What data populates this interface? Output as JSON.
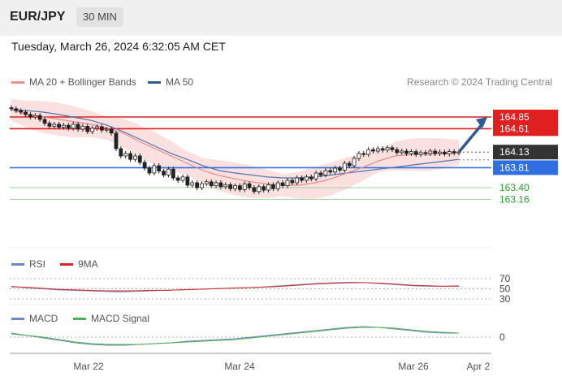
{
  "header": {
    "symbol": "EUR/JPY",
    "timeframe": "30 MIN"
  },
  "date": "Tuesday, March 26, 2024 6:32:05 AM CET",
  "legend_main": [
    {
      "label": "MA 20 + Bollinger Bands",
      "color": "#e89090"
    },
    {
      "label": "MA 50",
      "color": "#2f5a96"
    }
  ],
  "credit": "Research © 2024 Trading Central",
  "legend_rsi": [
    {
      "label": "RSI",
      "color": "#6f86c9"
    },
    {
      "label": "9MA",
      "color": "#d62728"
    }
  ],
  "legend_macd": [
    {
      "label": "MACD",
      "color": "#6f86c9"
    },
    {
      "label": "MACD Signal",
      "color": "#4caf50"
    }
  ],
  "chart_data": {
    "type": "candlestick",
    "x_ticks": [
      "Mar 22",
      "Mar 24",
      "Mar 26",
      "Apr 2"
    ],
    "y_range": [
      162.75,
      165.25
    ],
    "close_series": [
      165.02,
      164.98,
      164.95,
      164.9,
      164.85,
      164.88,
      164.8,
      164.72,
      164.66,
      164.7,
      164.64,
      164.68,
      164.62,
      164.7,
      164.6,
      164.66,
      164.55,
      164.62,
      164.65,
      164.58,
      164.6,
      164.52,
      164.2,
      164.05,
      164.1,
      163.98,
      164.05,
      163.92,
      163.8,
      163.7,
      163.85,
      163.74,
      163.66,
      163.78,
      163.6,
      163.55,
      163.62,
      163.45,
      163.5,
      163.4,
      163.48,
      163.52,
      163.44,
      163.5,
      163.42,
      163.46,
      163.38,
      163.44,
      163.36,
      163.48,
      163.4,
      163.32,
      163.42,
      163.35,
      163.46,
      163.38,
      163.5,
      163.44,
      163.55,
      163.5,
      163.6,
      163.55,
      163.62,
      163.58,
      163.7,
      163.66,
      163.75,
      163.72,
      163.8,
      163.76,
      163.9,
      163.85,
      164.0,
      164.1,
      164.08,
      164.18,
      164.15,
      164.2,
      164.17,
      164.22,
      164.18,
      164.12,
      164.15,
      164.1,
      164.14,
      164.08,
      164.12,
      164.1,
      164.15,
      164.1,
      164.13,
      164.09,
      164.14,
      164.11,
      164.13
    ],
    "ma20": [
      165.0,
      164.9,
      164.85,
      164.8,
      164.75,
      164.7,
      164.62,
      164.52,
      164.35,
      164.2,
      164.05,
      163.9,
      163.75,
      163.65,
      163.58,
      163.52,
      163.48,
      163.45,
      163.45,
      163.5,
      163.58,
      163.7,
      163.82,
      163.95,
      164.05,
      164.08,
      164.08,
      164.1,
      164.12
    ],
    "ma50": [
      165.0,
      164.98,
      164.95,
      164.9,
      164.84,
      164.78,
      164.68,
      164.55,
      164.4,
      164.25,
      164.1,
      163.98,
      163.85,
      163.75,
      163.7,
      163.66,
      163.62,
      163.6,
      163.6,
      163.62,
      163.66,
      163.7,
      163.74,
      163.78,
      163.82,
      163.86,
      163.9,
      163.94,
      163.98
    ],
    "levels": [
      {
        "value": "164.85",
        "kind": "resistance",
        "color": "#e02020"
      },
      {
        "value": "164.61",
        "kind": "resistance",
        "color": "#e02020"
      },
      {
        "value": "164.13",
        "kind": "current",
        "color": "#333333"
      },
      {
        "value": "163.81",
        "kind": "pivot",
        "color": "#2f6fe0"
      },
      {
        "value": "163.40",
        "kind": "support",
        "color": "#2a9d2a"
      },
      {
        "value": "163.16",
        "kind": "support",
        "color": "#2a9d2a"
      }
    ],
    "target_arrow": {
      "from": 164.13,
      "to": 164.85
    },
    "rsi": {
      "levels": [
        "70",
        "50",
        "30"
      ],
      "rsi_values": [
        55,
        52,
        50,
        48,
        47,
        46,
        45,
        44,
        45,
        46,
        47,
        48,
        49,
        50,
        51,
        52,
        53,
        55,
        57,
        59,
        61,
        62,
        63,
        62,
        60,
        58,
        56,
        55,
        55,
        56
      ],
      "ma9_values": [
        54,
        53,
        51,
        49,
        48,
        47,
        46,
        46,
        46,
        47,
        47,
        48,
        49,
        50,
        51,
        52,
        53,
        54,
        56,
        58,
        60,
        61,
        62,
        62,
        61,
        59,
        57,
        56,
        55,
        55
      ]
    },
    "macd": {
      "zero_label": "0",
      "macd_values": [
        0.05,
        0.02,
        -0.01,
        -0.04,
        -0.07,
        -0.09,
        -0.1,
        -0.1,
        -0.09,
        -0.08,
        -0.07,
        -0.05,
        -0.04,
        -0.03,
        -0.02,
        0.0,
        0.02,
        0.04,
        0.06,
        0.08,
        0.1,
        0.12,
        0.13,
        0.12,
        0.1,
        0.08,
        0.06,
        0.05,
        0.05
      ],
      "signal_values": [
        0.04,
        0.02,
        0.0,
        -0.03,
        -0.06,
        -0.08,
        -0.09,
        -0.09,
        -0.09,
        -0.08,
        -0.07,
        -0.06,
        -0.05,
        -0.04,
        -0.03,
        -0.01,
        0.01,
        0.03,
        0.05,
        0.07,
        0.09,
        0.11,
        0.12,
        0.12,
        0.11,
        0.09,
        0.07,
        0.06,
        0.05
      ]
    }
  }
}
